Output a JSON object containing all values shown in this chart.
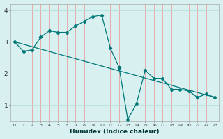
{
  "xlabel": "Humidex (Indice chaleur)",
  "bg_color": "#d8f0f0",
  "line_color": "#007878",
  "grid_color_v": "#e8a0a0",
  "grid_color_h": "#b8dede",
  "xlim": [
    -0.5,
    23.5
  ],
  "ylim": [
    0.5,
    4.2
  ],
  "yticks": [
    1,
    2,
    3,
    4
  ],
  "xticks": [
    0,
    1,
    2,
    3,
    4,
    5,
    6,
    7,
    8,
    9,
    10,
    11,
    12,
    13,
    14,
    15,
    16,
    17,
    18,
    19,
    20,
    21,
    22,
    23
  ],
  "line1_x": [
    0,
    1,
    2,
    3,
    4,
    5,
    6,
    7,
    8,
    9,
    10,
    11,
    12
  ],
  "line1_y": [
    3.0,
    2.7,
    2.75,
    3.15,
    3.35,
    3.3,
    3.3,
    3.5,
    3.65,
    3.8,
    3.85,
    2.8,
    2.2
  ],
  "line2_x": [
    12,
    13,
    14,
    15,
    16,
    17,
    18,
    19,
    20,
    21,
    22,
    23
  ],
  "line2_y": [
    2.2,
    0.55,
    1.05,
    2.1,
    1.85,
    1.85,
    1.5,
    1.5,
    1.45,
    1.25,
    1.35,
    1.25
  ],
  "line3_x": [
    0,
    23
  ],
  "line3_y": [
    3.0,
    1.25
  ]
}
